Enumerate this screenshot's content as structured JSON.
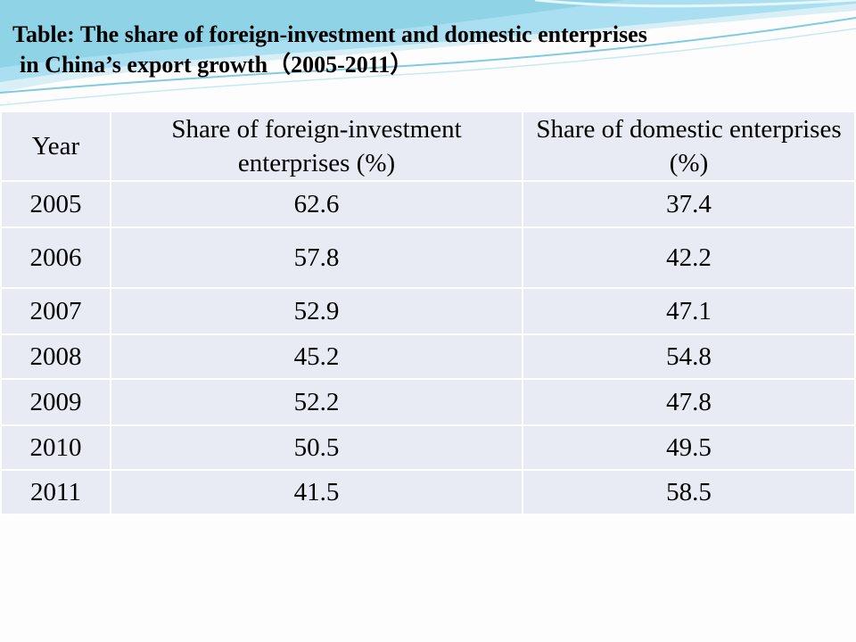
{
  "title": {
    "line1": "Table: The share of foreign-investment and domestic enterprises",
    "line2": "in China’s export growth（2005-2011）"
  },
  "table": {
    "headers": [
      "Year",
      "Share of foreign-investment enterprises (%)",
      "Share of domestic enterprises (%)"
    ],
    "rows": [
      [
        "2005",
        "62.6",
        "37.4"
      ],
      [
        "2006",
        "57.8",
        "42.2"
      ],
      [
        "2007",
        "52.9",
        "47.1"
      ],
      [
        "2008",
        "45.2",
        "54.8"
      ],
      [
        "2009",
        "52.2",
        "47.8"
      ],
      [
        "2010",
        "50.5",
        "49.5"
      ],
      [
        "2011",
        "41.5",
        "58.5"
      ]
    ]
  },
  "colors": {
    "cell_background": "#e8eaf4",
    "swoosh_primary": "#8ed3e6",
    "swoosh_secondary": "#c7e9f2"
  }
}
